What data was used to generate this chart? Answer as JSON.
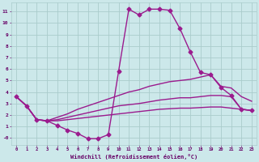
{
  "bg_color": "#cce8ea",
  "line_color": "#9b1b8e",
  "grid_color": "#aacccc",
  "xlabel": "Windchill (Refroidissement éolien,°C)",
  "xlabel_color": "#660066",
  "tick_color": "#660066",
  "ylim": [
    -0.6,
    11.8
  ],
  "xlim": [
    -0.5,
    23.5
  ],
  "yticks": [
    0,
    1,
    2,
    3,
    4,
    5,
    6,
    7,
    8,
    9,
    10,
    11
  ],
  "ytick_labels": [
    "-0",
    "1",
    "2",
    "3",
    "4",
    "5",
    "6",
    "7",
    "8",
    "9",
    "10",
    "11"
  ],
  "xticks": [
    0,
    1,
    2,
    3,
    4,
    5,
    6,
    7,
    8,
    9,
    10,
    11,
    12,
    13,
    14,
    15,
    16,
    17,
    18,
    19,
    20,
    21,
    22,
    23
  ],
  "curve1_x": [
    0,
    1,
    2,
    3,
    4,
    5,
    6,
    7,
    8,
    9,
    10,
    11,
    12,
    13,
    14,
    15,
    16,
    17,
    18,
    19,
    20,
    21,
    22,
    23
  ],
  "curve1_y": [
    3.6,
    2.8,
    1.6,
    1.5,
    1.1,
    0.7,
    0.4,
    -0.05,
    -0.05,
    0.3,
    5.8,
    11.2,
    10.7,
    11.2,
    11.2,
    11.1,
    9.5,
    7.5,
    5.7,
    5.5,
    4.4,
    3.7,
    2.5,
    2.4
  ],
  "curve2_x": [
    0,
    1,
    2,
    3,
    4,
    5,
    6,
    7,
    8,
    9,
    10,
    11,
    12,
    13,
    14,
    15,
    16,
    17,
    18,
    19,
    20,
    21,
    22,
    23
  ],
  "curve2_y": [
    3.6,
    2.8,
    1.6,
    1.5,
    1.8,
    2.1,
    2.5,
    2.8,
    3.1,
    3.4,
    3.7,
    4.0,
    4.2,
    4.5,
    4.7,
    4.9,
    5.0,
    5.1,
    5.3,
    5.5,
    4.5,
    4.35,
    3.6,
    3.2
  ],
  "curve3_x": [
    0,
    1,
    2,
    3,
    4,
    5,
    6,
    7,
    8,
    9,
    10,
    11,
    12,
    13,
    14,
    15,
    16,
    17,
    18,
    19,
    20,
    21,
    22,
    23
  ],
  "curve3_y": [
    3.6,
    2.8,
    1.6,
    1.5,
    1.6,
    1.8,
    2.0,
    2.2,
    2.4,
    2.6,
    2.8,
    2.9,
    3.0,
    3.15,
    3.3,
    3.4,
    3.5,
    3.5,
    3.6,
    3.7,
    3.7,
    3.6,
    2.5,
    2.4
  ],
  "curve4_x": [
    0,
    1,
    2,
    3,
    4,
    5,
    6,
    7,
    8,
    9,
    10,
    11,
    12,
    13,
    14,
    15,
    16,
    17,
    18,
    19,
    20,
    21,
    22,
    23
  ],
  "curve4_y": [
    3.6,
    2.8,
    1.6,
    1.5,
    1.5,
    1.6,
    1.7,
    1.8,
    1.9,
    2.0,
    2.1,
    2.2,
    2.3,
    2.4,
    2.5,
    2.55,
    2.6,
    2.6,
    2.65,
    2.7,
    2.7,
    2.6,
    2.5,
    2.4
  ],
  "marker_size": 2.5,
  "linewidth": 1.0
}
